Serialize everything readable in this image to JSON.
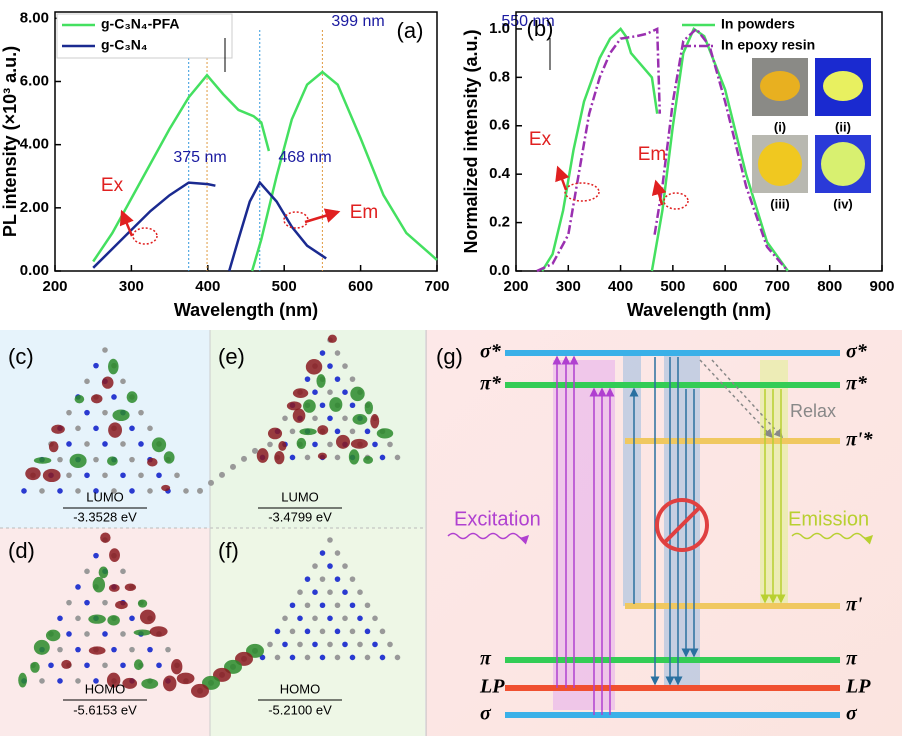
{
  "chart_data": [
    {
      "type": "line",
      "panel": "(a)",
      "xlabel": "Wavelength (nm)",
      "ylabel": "PL intensity (×10³ a.u.)",
      "xlim": [
        200,
        700
      ],
      "xticks": [
        200,
        300,
        400,
        500,
        600,
        700
      ],
      "ylim": [
        0,
        8.2
      ],
      "yticks": [
        {
          "value": 0,
          "label": "0.00"
        },
        {
          "value": 2,
          "label": "2.00"
        },
        {
          "value": 4,
          "label": "4.00"
        },
        {
          "value": 6,
          "label": "6.00"
        },
        {
          "value": 8,
          "label": "8.00"
        }
      ],
      "legend": "upper left",
      "series": [
        {
          "name": "g-C₃N₄-PFA",
          "color": "#44e060",
          "dash": "solid",
          "x": [
            250,
            275,
            300,
            325,
            350,
            375,
            399,
            420,
            440,
            460,
            470,
            480,
            485,
            458,
            470,
            490,
            510,
            530,
            550,
            570,
            600,
            630,
            660,
            700
          ],
          "values": [
            0.3,
            1.2,
            2.3,
            3.4,
            4.5,
            5.5,
            6.2,
            5.6,
            5.1,
            4.9,
            4.7,
            3.8,
            null,
            0,
            1.0,
            3.0,
            4.8,
            5.9,
            6.3,
            5.9,
            4.2,
            2.4,
            1.2,
            0.35
          ]
        },
        {
          "name": "g-C₃N₄",
          "color": "#1a2a90",
          "dash": "solid",
          "x": [
            250,
            275,
            300,
            325,
            350,
            375,
            400,
            410,
            415,
            428,
            440,
            455,
            468,
            490,
            510,
            530,
            555
          ],
          "values": [
            0.1,
            0.7,
            1.3,
            1.9,
            2.4,
            2.8,
            2.75,
            2.7,
            null,
            0,
            1.0,
            2.2,
            2.8,
            2.2,
            1.4,
            0.8,
            0.4
          ]
        }
      ],
      "vlines": [
        {
          "x": 375,
          "color": "#3399dd"
        },
        {
          "x": 399,
          "color": "#e09a40"
        },
        {
          "x": 468,
          "color": "#3399dd"
        },
        {
          "x": 550,
          "color": "#e09a40"
        }
      ],
      "annotations": [
        {
          "text": "(a)",
          "color": "#000"
        },
        {
          "text": "399 nm",
          "color": "#1a1aa0"
        },
        {
          "text": "550 nm",
          "color": "#1a1aa0"
        },
        {
          "text": "375 nm",
          "color": "#1a1aa0"
        },
        {
          "text": "468 nm",
          "color": "#1a1aa0"
        },
        {
          "text": "Ex",
          "color": "#e02020"
        },
        {
          "text": "Em",
          "color": "#e02020"
        }
      ]
    },
    {
      "type": "line",
      "panel": "(b)",
      "xlabel": "Wavelength (nm)",
      "ylabel": "Normalized intensity (a.u.)",
      "xlim": [
        200,
        900
      ],
      "xticks": [
        200,
        300,
        400,
        500,
        600,
        700,
        800,
        900
      ],
      "ylim": [
        0,
        1.07
      ],
      "yticks": [
        {
          "value": 0,
          "label": "0.0"
        },
        0.2,
        0.4,
        0.6,
        0.8,
        {
          "value": 1,
          "label": "1.0"
        }
      ],
      "legend": "upper right",
      "series": [
        {
          "name": "In powders",
          "color": "#44e060",
          "dash": "solid",
          "x": [
            250,
            270,
            290,
            310,
            330,
            360,
            380,
            400,
            410,
            420,
            440,
            460,
            470,
            475,
            460,
            480,
            500,
            520,
            540,
            560,
            600,
            640,
            680,
            720
          ],
          "values": [
            0,
            0.07,
            0.25,
            0.5,
            0.7,
            0.88,
            0.96,
            1.0,
            0.97,
            0.9,
            0.85,
            0.8,
            0.65,
            null,
            0,
            0.25,
            0.6,
            0.9,
            1.0,
            0.97,
            0.75,
            0.4,
            0.12,
            0
          ]
        },
        {
          "name": "In epoxy resin",
          "color": "#9a30b0",
          "dash": "dashdot",
          "x": [
            240,
            270,
            300,
            320,
            340,
            360,
            380,
            400,
            430,
            450,
            470,
            475,
            478,
            465,
            480,
            500,
            520,
            545,
            570,
            600,
            640,
            680,
            720
          ],
          "values": [
            0,
            0.03,
            0.15,
            0.4,
            0.65,
            0.8,
            0.9,
            0.96,
            0.97,
            0.98,
            1.0,
            0.65,
            null,
            0.15,
            0.35,
            0.7,
            0.95,
            1.0,
            0.93,
            0.7,
            0.35,
            0.1,
            0
          ]
        }
      ],
      "annotations": [
        {
          "text": "(b)",
          "color": "#000"
        },
        {
          "text": "Ex",
          "color": "#e02020"
        },
        {
          "text": "Em",
          "color": "#e02020"
        }
      ],
      "insets": [
        "(i)",
        "(ii)",
        "(iii)",
        "(iv)"
      ]
    }
  ],
  "orbitals": [
    {
      "label": "(c)",
      "orbital": "LUMO",
      "energy": "-3.3528 eV"
    },
    {
      "label": "(d)",
      "orbital": "HOMO",
      "energy": "-5.6153 eV"
    },
    {
      "label": "(e)",
      "orbital": "LUMO",
      "energy": "-3.4799 eV"
    },
    {
      "label": "(f)",
      "orbital": "HOMO",
      "energy": "-5.2100 eV"
    }
  ],
  "diagram": {
    "label": "(g)",
    "levels": [
      "σ*",
      "π*",
      "π'*",
      "π'",
      "π",
      "LP",
      "σ"
    ],
    "relax": "Relax",
    "excitation": "Excitation",
    "emission": "Emission"
  }
}
